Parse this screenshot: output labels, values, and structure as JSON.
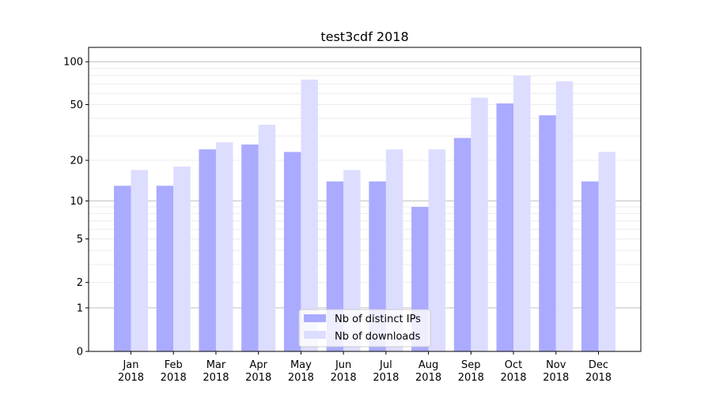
{
  "chart_data": {
    "type": "bar",
    "title": "test3cdf 2018",
    "xlabel": "",
    "ylabel": "",
    "yscale": "log10(y+1)",
    "ylim": [
      0,
      126
    ],
    "yticks": [
      0,
      1,
      2,
      5,
      10,
      20,
      50,
      100
    ],
    "grid": true,
    "legend_position": "bottom-center",
    "categories": [
      "Jan\n2018",
      "Feb\n2018",
      "Mar\n2018",
      "Apr\n2018",
      "May\n2018",
      "Jun\n2018",
      "Jul\n2018",
      "Aug\n2018",
      "Sep\n2018",
      "Oct\n2018",
      "Nov\n2018",
      "Dec\n2018"
    ],
    "series": [
      {
        "name": "Nb of distinct IPs",
        "color": "#aaaaff",
        "values": [
          13,
          13,
          24,
          26,
          23,
          14,
          14,
          9,
          29,
          51,
          42,
          14
        ]
      },
      {
        "name": "Nb of downloads",
        "color": "#ddddff",
        "values": [
          17,
          18,
          27,
          36,
          75,
          17,
          24,
          24,
          56,
          80,
          73,
          23
        ]
      }
    ]
  }
}
